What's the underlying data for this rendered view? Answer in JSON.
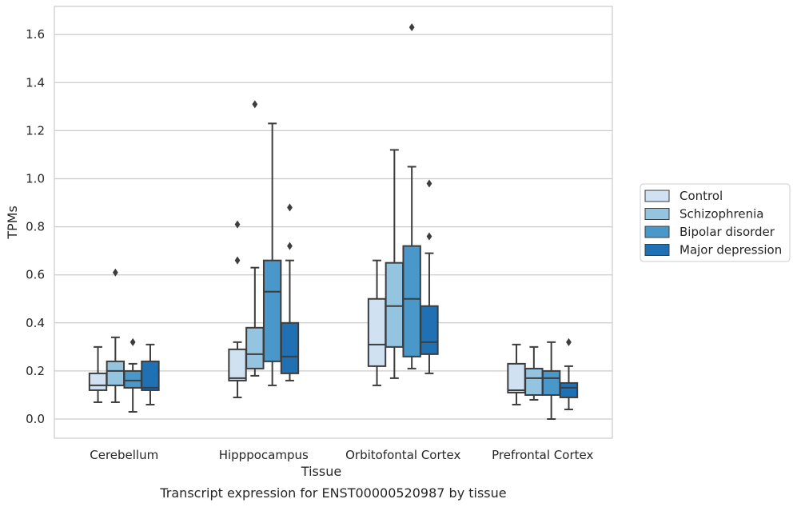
{
  "chart_data": {
    "type": "box",
    "xlabel": "Tissue",
    "ylabel": "TPMs",
    "caption": "Transcript expression for ENST00000520987 by tissue",
    "ylim": [
      -0.08,
      1.72
    ],
    "yticks": [
      0.0,
      0.2,
      0.4,
      0.6,
      0.8,
      1.0,
      1.2,
      1.4,
      1.6
    ],
    "ytick_labels": [
      "0.0",
      "0.2",
      "0.4",
      "0.6",
      "0.8",
      "1.0",
      "1.2",
      "1.4",
      "1.6"
    ],
    "grid": true,
    "legend_position": "right",
    "categories": [
      "Cerebellum",
      "Hipppocampus",
      "Orbitofontal Cortex",
      "Prefrontal Cortex"
    ],
    "series": [
      {
        "name": "Control",
        "color": "#d0e1f2",
        "boxes": [
          {
            "min": 0.07,
            "q1": 0.12,
            "median": 0.14,
            "q3": 0.19,
            "max": 0.3,
            "outliers": []
          },
          {
            "min": 0.09,
            "q1": 0.16,
            "median": 0.17,
            "q3": 0.29,
            "max": 0.32,
            "outliers": [
              0.66,
              0.81
            ]
          },
          {
            "min": 0.14,
            "q1": 0.22,
            "median": 0.31,
            "q3": 0.5,
            "max": 0.66,
            "outliers": []
          },
          {
            "min": 0.06,
            "q1": 0.11,
            "median": 0.12,
            "q3": 0.23,
            "max": 0.31,
            "outliers": []
          }
        ]
      },
      {
        "name": "Schizophrenia",
        "color": "#94c4df",
        "boxes": [
          {
            "min": 0.07,
            "q1": 0.14,
            "median": 0.2,
            "q3": 0.24,
            "max": 0.34,
            "outliers": [
              0.61
            ]
          },
          {
            "min": 0.18,
            "q1": 0.21,
            "median": 0.27,
            "q3": 0.38,
            "max": 0.63,
            "outliers": [
              1.31
            ]
          },
          {
            "min": 0.17,
            "q1": 0.3,
            "median": 0.47,
            "q3": 0.65,
            "max": 1.12,
            "outliers": []
          },
          {
            "min": 0.08,
            "q1": 0.1,
            "median": 0.17,
            "q3": 0.21,
            "max": 0.3,
            "outliers": []
          }
        ]
      },
      {
        "name": "Bipolar disorder",
        "color": "#4a98c9",
        "boxes": [
          {
            "min": 0.03,
            "q1": 0.13,
            "median": 0.16,
            "q3": 0.2,
            "max": 0.23,
            "outliers": [
              0.32
            ]
          },
          {
            "min": 0.14,
            "q1": 0.24,
            "median": 0.53,
            "q3": 0.66,
            "max": 1.23,
            "outliers": []
          },
          {
            "min": 0.21,
            "q1": 0.26,
            "median": 0.5,
            "q3": 0.72,
            "max": 1.05,
            "outliers": [
              1.63
            ]
          },
          {
            "min": 0.0,
            "q1": 0.1,
            "median": 0.17,
            "q3": 0.2,
            "max": 0.32,
            "outliers": []
          }
        ]
      },
      {
        "name": "Major depression",
        "color": "#2070b4",
        "boxes": [
          {
            "min": 0.06,
            "q1": 0.12,
            "median": 0.13,
            "q3": 0.24,
            "max": 0.31,
            "outliers": []
          },
          {
            "min": 0.16,
            "q1": 0.19,
            "median": 0.26,
            "q3": 0.4,
            "max": 0.66,
            "outliers": [
              0.72,
              0.88
            ]
          },
          {
            "min": 0.19,
            "q1": 0.27,
            "median": 0.32,
            "q3": 0.47,
            "max": 0.69,
            "outliers": [
              0.76,
              0.98
            ]
          },
          {
            "min": 0.04,
            "q1": 0.09,
            "median": 0.13,
            "q3": 0.15,
            "max": 0.22,
            "outliers": [
              0.32
            ]
          }
        ]
      }
    ]
  }
}
